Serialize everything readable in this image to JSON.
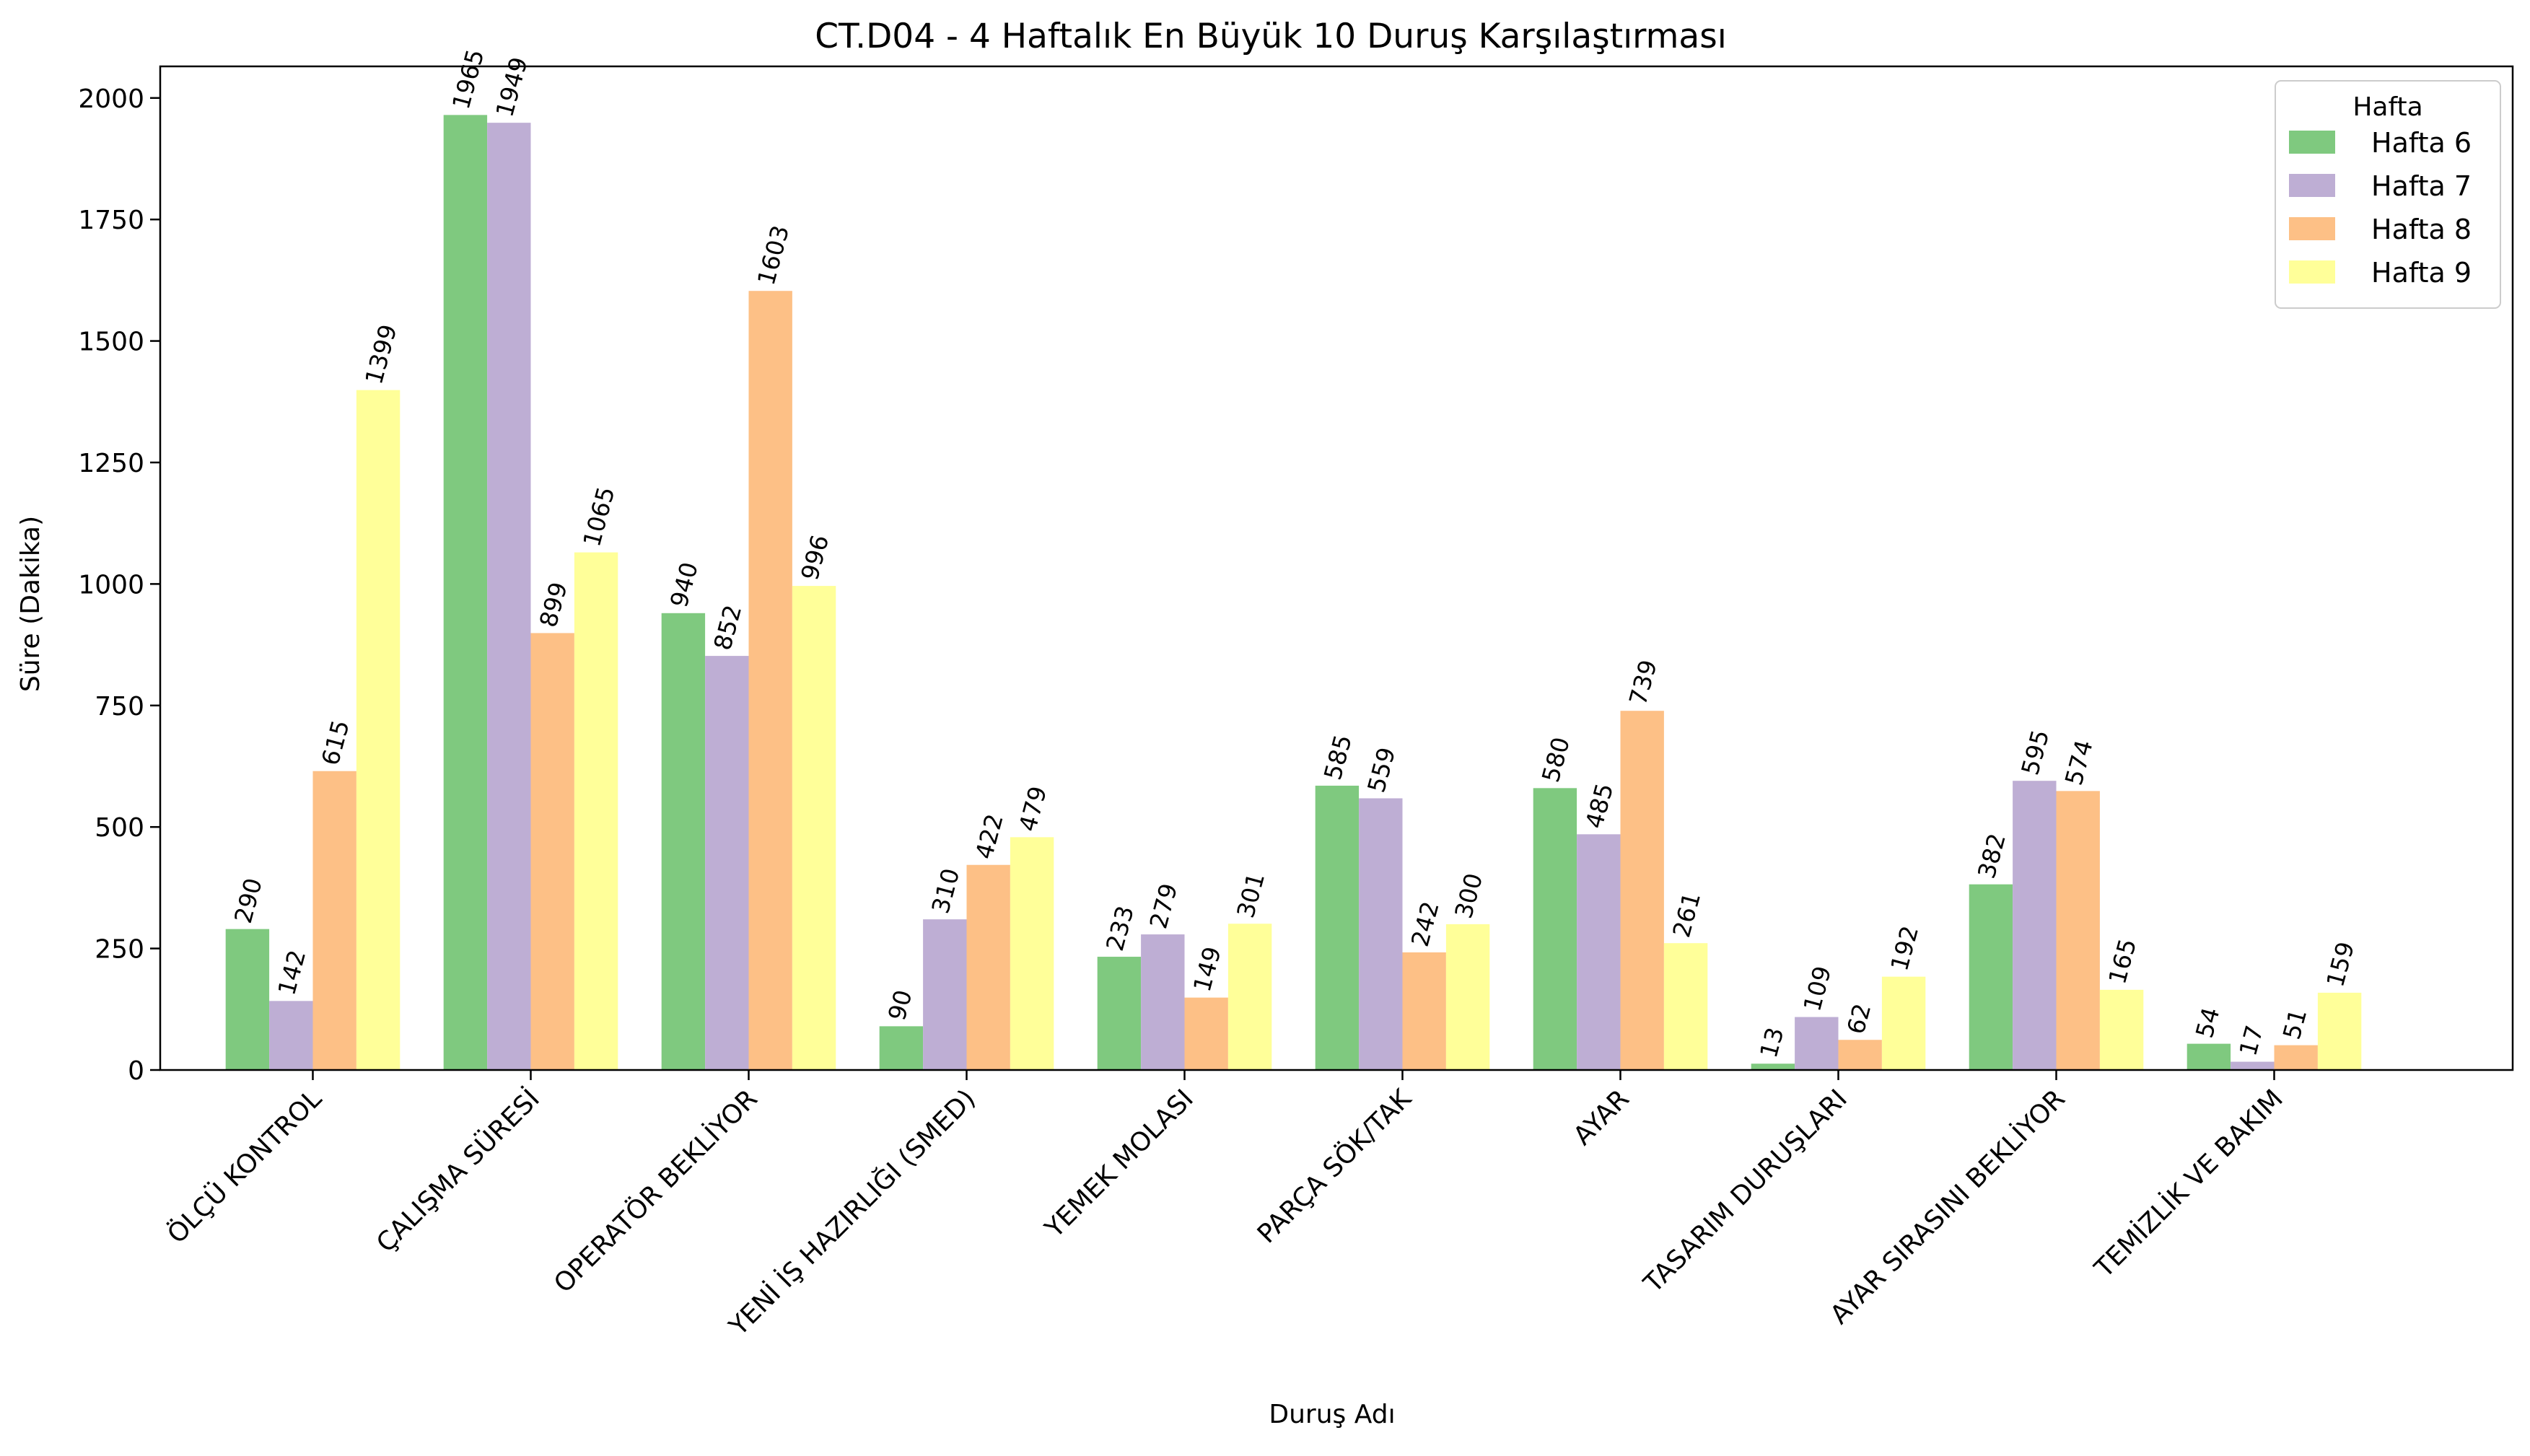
{
  "chart_data": {
    "type": "bar",
    "title": "CT.D04 - 4 Haftalık En Büyük 10 Duruş Karşılaştırması",
    "xlabel": "Duruş Adı",
    "ylabel": "Süre (Dakika)",
    "ylim": [
      0,
      2065
    ],
    "yticks": [
      0,
      250,
      500,
      750,
      1000,
      1250,
      1500,
      1750,
      2000
    ],
    "grid": false,
    "legend": {
      "title": "Hafta",
      "position": "top-right"
    },
    "categories": [
      "ÖLÇÜ KONTROL",
      "ÇALIŞMA SÜRESİ",
      "OPERATÖR BEKLİYOR",
      "YENİ İŞ HAZIRLIĞI (SMED)",
      "YEMEK MOLASI",
      "PARÇA SÖK/TAK",
      "AYAR",
      "TASARIM DURUŞLARI",
      "AYAR SIRASINI BEKLİYOR",
      "TEMİZLİK VE BAKIM"
    ],
    "series": [
      {
        "name": "Hafta 6",
        "color": "#7fc97f",
        "values": [
          290,
          1965,
          940,
          90,
          233,
          585,
          580,
          13,
          382,
          54
        ]
      },
      {
        "name": "Hafta 7",
        "color": "#beaed4",
        "values": [
          142,
          1949,
          852,
          310,
          279,
          559,
          485,
          109,
          595,
          17
        ]
      },
      {
        "name": "Hafta 8",
        "color": "#fdc086",
        "values": [
          615,
          899,
          1603,
          422,
          149,
          242,
          739,
          62,
          574,
          51
        ]
      },
      {
        "name": "Hafta 9",
        "color": "#ffff99",
        "values": [
          1399,
          1065,
          996,
          479,
          301,
          300,
          261,
          192,
          165,
          159
        ]
      }
    ]
  }
}
